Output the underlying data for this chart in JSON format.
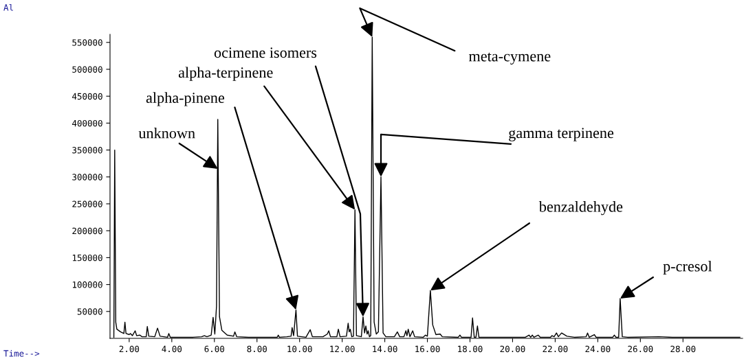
{
  "chart_data": {
    "type": "line",
    "xlabel": "Time-->",
    "x": [
      1.28,
      1.32,
      1.37,
      1.42,
      1.6,
      1.75,
      1.8,
      1.85,
      2.0,
      2.06,
      2.15,
      2.28,
      2.35,
      2.5,
      2.6,
      2.8,
      2.85,
      2.92,
      3.2,
      3.33,
      3.45,
      3.8,
      3.86,
      3.93,
      4.6,
      5.0,
      5.4,
      5.53,
      5.65,
      5.85,
      5.94,
      6.02,
      6.1,
      6.16,
      6.24,
      6.35,
      6.6,
      6.9,
      6.96,
      7.05,
      7.6,
      8.4,
      8.95,
      9.0,
      9.05,
      9.4,
      9.6,
      9.65,
      9.72,
      9.83,
      9.9,
      10.3,
      10.5,
      10.6,
      11.1,
      11.3,
      11.37,
      11.45,
      11.75,
      11.82,
      11.9,
      12.2,
      12.28,
      12.33,
      12.38,
      12.45,
      12.53,
      12.6,
      12.67,
      12.9,
      12.98,
      13.05,
      13.11,
      13.17,
      13.22,
      13.28,
      13.34,
      13.41,
      13.5,
      13.6,
      13.7,
      13.82,
      13.92,
      14.05,
      14.45,
      14.59,
      14.7,
      14.9,
      14.99,
      15.04,
      15.1,
      15.18,
      15.31,
      15.4,
      15.8,
      15.91,
      16.0,
      16.14,
      16.25,
      16.4,
      16.6,
      16.7,
      17.45,
      17.53,
      17.6,
      18.05,
      18.12,
      18.2,
      18.28,
      18.35,
      18.42,
      19.0,
      20.6,
      20.77,
      20.85,
      20.93,
      21.0,
      21.2,
      21.3,
      21.78,
      21.85,
      21.95,
      22.06,
      22.15,
      22.3,
      22.55,
      22.9,
      23.45,
      23.52,
      23.6,
      23.84,
      23.92,
      24.7,
      24.78,
      24.85,
      24.98,
      25.05,
      25.15,
      25.4,
      26.88,
      27.5,
      30.67
    ],
    "values": [
      2000,
      350000,
      30000,
      17000,
      12000,
      9000,
      30000,
      9000,
      7000,
      9000,
      5000,
      14000,
      5000,
      6000,
      3000,
      3000,
      22000,
      4000,
      3000,
      19000,
      4000,
      2000,
      9000,
      2000,
      2000,
      2000,
      3000,
      5000,
      3000,
      6000,
      39000,
      8000,
      60000,
      407000,
      40000,
      15000,
      6000,
      4000,
      12000,
      3000,
      2000,
      2000,
      2000,
      6000,
      2000,
      3000,
      4000,
      20000,
      5000,
      53000,
      4000,
      2000,
      16000,
      3000,
      3000,
      8000,
      14000,
      3000,
      3000,
      17000,
      3000,
      4000,
      28000,
      12000,
      17000,
      3000,
      4000,
      239000,
      5000,
      3000,
      40000,
      10000,
      23000,
      8000,
      14000,
      3000,
      5000,
      560000,
      30000,
      8000,
      12000,
      300000,
      10000,
      3000,
      3000,
      12000,
      3000,
      3000,
      14000,
      5000,
      17000,
      3000,
      14000,
      3000,
      2000,
      6000,
      4000,
      89000,
      25000,
      7000,
      8000,
      3000,
      2000,
      6000,
      2000,
      2000,
      38000,
      2000,
      2000,
      23000,
      2000,
      2000,
      2000,
      6000,
      2000,
      6000,
      2000,
      6000,
      2000,
      2000,
      5000,
      3000,
      10000,
      3000,
      10000,
      4000,
      2000,
      3000,
      10000,
      2000,
      7000,
      2000,
      2000,
      6000,
      2000,
      2000,
      74000,
      3000,
      2000,
      3000,
      2000,
      2000
    ],
    "color": "#000000",
    "xlim": [
      1.1,
      30.8
    ],
    "ylim": [
      0,
      565000
    ],
    "xticks": [
      {
        "value": 2,
        "label": "2.00"
      },
      {
        "value": 4,
        "label": "4.00"
      },
      {
        "value": 6,
        "label": "6.00"
      },
      {
        "value": 8,
        "label": "8.00"
      },
      {
        "value": 10,
        "label": "10.00"
      },
      {
        "value": 12,
        "label": "12.00"
      },
      {
        "value": 14,
        "label": "14.00"
      },
      {
        "value": 16,
        "label": "16.00"
      },
      {
        "value": 18,
        "label": "18.00"
      },
      {
        "value": 20,
        "label": "20.00"
      },
      {
        "value": 22,
        "label": "22.00"
      },
      {
        "value": 24,
        "label": "24.00"
      },
      {
        "value": 26,
        "label": "26.00"
      },
      {
        "value": 28,
        "label": "28.00"
      }
    ],
    "yticks": [
      50000,
      100000,
      150000,
      200000,
      250000,
      300000,
      350000,
      400000,
      450000,
      500000,
      550000
    ],
    "annotations": [
      {
        "text": "unknown",
        "x": 6.16,
        "y": 315000
      },
      {
        "text": "alpha-pinene",
        "x": 9.83,
        "y": 53000
      },
      {
        "text": "alpha-terpinene",
        "x": 12.6,
        "y": 239000
      },
      {
        "text": "ocimene isomers",
        "x": 12.98,
        "y": 40000
      },
      {
        "text": "meta-cymene",
        "x": 13.41,
        "y": 560000
      },
      {
        "text": "gamma terpinene",
        "x": 13.82,
        "y": 300000
      },
      {
        "text": "benzaldehyde",
        "x": 16.14,
        "y": 89000
      },
      {
        "text": "p-cresol",
        "x": 25.05,
        "y": 74000
      },
      "Al"
    ],
    "grid": false
  }
}
